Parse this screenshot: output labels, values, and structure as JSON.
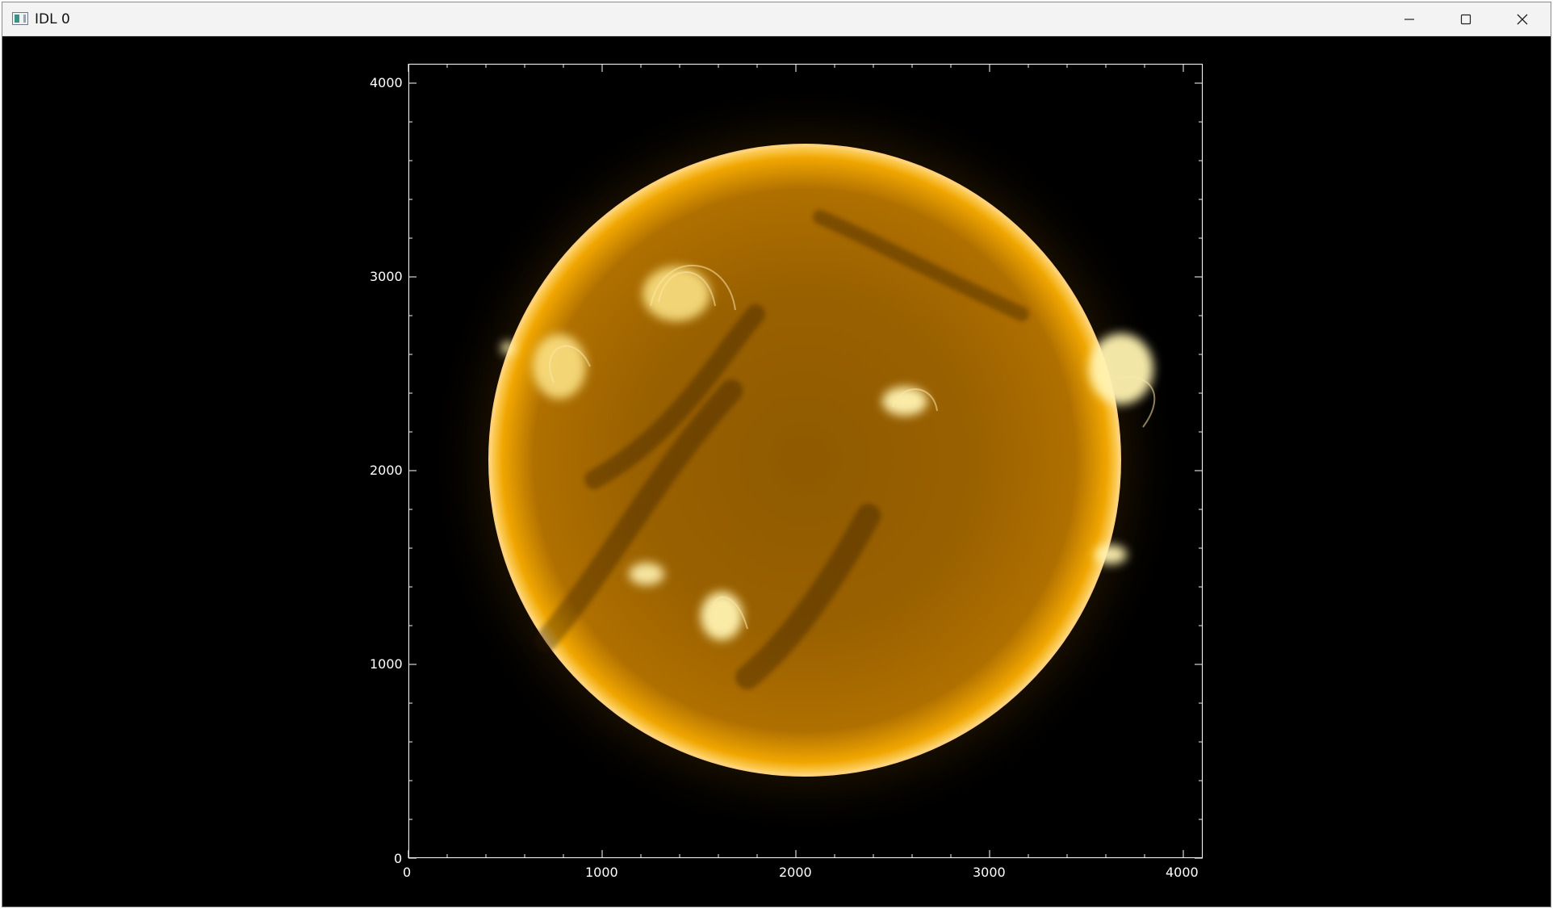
{
  "window": {
    "title": "IDL 0",
    "controls": {
      "minimize": "minimize-icon",
      "maximize": "maximize-icon",
      "close": "close-icon"
    }
  },
  "plot": {
    "type": "image",
    "x_ticks": [
      "0",
      "1000",
      "2000",
      "3000",
      "4000"
    ],
    "y_ticks": [
      "0",
      "1000",
      "2000",
      "3000",
      "4000"
    ],
    "x_range": [
      0,
      4096
    ],
    "y_range": [
      0,
      4096
    ],
    "colors": {
      "background": "#000000",
      "axis": "#ffffff",
      "disk_core": "#a86a00",
      "limb": "#ffd166",
      "corona": "#ffb300"
    }
  }
}
